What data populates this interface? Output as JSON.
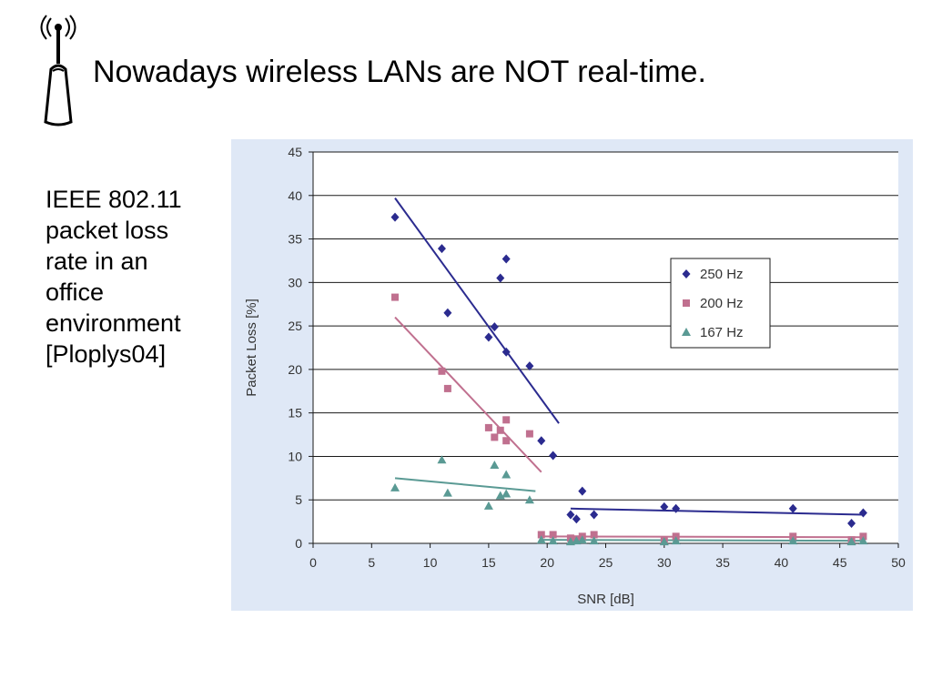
{
  "slide": {
    "title": "Nowadays wireless LANs are NOT real-time.",
    "icon": "wireless-access-point-icon",
    "caption_lines": [
      "IEEE 802.11",
      "packet loss",
      "rate in an",
      "office",
      "environment",
      "[Ploplys04]"
    ]
  },
  "chart_data": {
    "type": "scatter",
    "xlabel": "SNR [dB]",
    "ylabel": "Packet Loss [%]",
    "xlim": [
      0,
      50
    ],
    "ylim": [
      0,
      45
    ],
    "xticks": [
      0,
      5,
      10,
      15,
      20,
      25,
      30,
      35,
      40,
      45,
      50
    ],
    "yticks": [
      0,
      5,
      10,
      15,
      20,
      25,
      30,
      35,
      40,
      45
    ],
    "grid": "horizontal",
    "legend_position": "right",
    "background": "#dfe8f6",
    "series": [
      {
        "name": "250 Hz",
        "marker": "diamond",
        "color": "#2b2b8f",
        "points": [
          [
            7,
            37.5
          ],
          [
            11,
            33.9
          ],
          [
            11.5,
            26.5
          ],
          [
            15,
            23.7
          ],
          [
            15.5,
            24.9
          ],
          [
            16,
            30.5
          ],
          [
            16.5,
            32.7
          ],
          [
            16.5,
            22
          ],
          [
            18.5,
            20.4
          ],
          [
            19.5,
            11.8
          ],
          [
            20.5,
            10.1
          ],
          [
            22,
            3.3
          ],
          [
            22.5,
            2.8
          ],
          [
            23,
            6
          ],
          [
            24,
            3.3
          ],
          [
            30,
            4.2
          ],
          [
            31,
            4
          ],
          [
            41,
            4
          ],
          [
            46,
            2.3
          ],
          [
            47,
            3.5
          ]
        ],
        "trendlines": [
          [
            [
              7,
              39.7
            ],
            [
              21,
              13.8
            ]
          ],
          [
            [
              22,
              4
            ],
            [
              47,
              3.3
            ]
          ]
        ]
      },
      {
        "name": "200 Hz",
        "marker": "square",
        "color": "#c0708f",
        "points": [
          [
            7,
            28.3
          ],
          [
            11,
            19.8
          ],
          [
            11.5,
            17.8
          ],
          [
            15,
            13.3
          ],
          [
            15.5,
            12.2
          ],
          [
            16,
            13
          ],
          [
            16.5,
            14.2
          ],
          [
            16.5,
            11.8
          ],
          [
            18.5,
            12.6
          ],
          [
            19.5,
            1
          ],
          [
            20.5,
            1
          ],
          [
            22,
            0.6
          ],
          [
            22.5,
            0.5
          ],
          [
            23,
            0.8
          ],
          [
            24,
            1
          ],
          [
            30,
            0.4
          ],
          [
            31,
            0.8
          ],
          [
            41,
            0.8
          ],
          [
            46,
            0.4
          ],
          [
            47,
            0.8
          ]
        ],
        "trendlines": [
          [
            [
              7,
              26
            ],
            [
              19.5,
              8.2
            ]
          ],
          [
            [
              19.5,
              0.8
            ],
            [
              47,
              0.7
            ]
          ]
        ]
      },
      {
        "name": "167 Hz",
        "marker": "triangle",
        "color": "#5a9a94",
        "points": [
          [
            7,
            6.4
          ],
          [
            11,
            9.6
          ],
          [
            11.5,
            5.8
          ],
          [
            15,
            4.3
          ],
          [
            15.5,
            9
          ],
          [
            16,
            5.5
          ],
          [
            16.5,
            7.9
          ],
          [
            16.5,
            5.7
          ],
          [
            18.5,
            5
          ],
          [
            19.5,
            0.4
          ],
          [
            20.5,
            0.3
          ],
          [
            22,
            0.2
          ],
          [
            22.5,
            0.3
          ],
          [
            23,
            0.4
          ],
          [
            24,
            0.3
          ],
          [
            30,
            0.2
          ],
          [
            31,
            0.3
          ],
          [
            41,
            0.3
          ],
          [
            46,
            0.2
          ],
          [
            47,
            0.3
          ]
        ],
        "trendlines": [
          [
            [
              7,
              7.5
            ],
            [
              19,
              6
            ]
          ],
          [
            [
              19.5,
              0.4
            ],
            [
              47,
              0.3
            ]
          ]
        ]
      }
    ]
  }
}
